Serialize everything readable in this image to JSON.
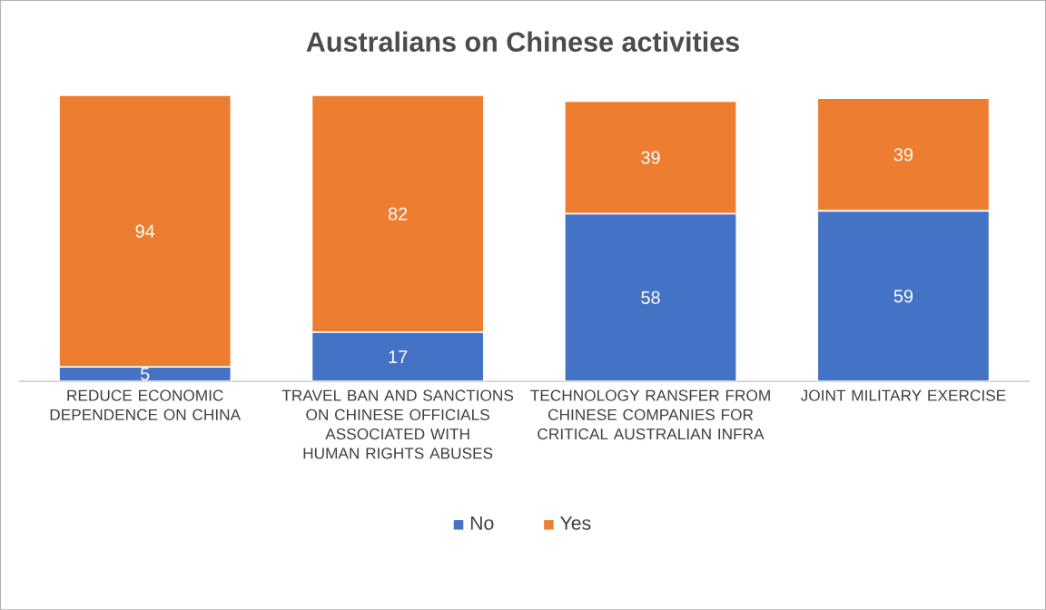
{
  "chart_data": {
    "type": "bar",
    "stacked": true,
    "title": "Australians on Chinese activities",
    "categories": [
      "REDUCE ECONOMIC DEPENDENCE ON CHINA",
      "TRAVEL BAN AND SANCTIONS  ON CHINESE OFFICIALS ASSOCIATED WITH HUMAN RIGHTS ABUSES",
      "TECHNOLOGY RANSFER FROM CHINESE COMPANIES FOR CRITICAL AUSTRALIAN INFRA",
      "JOINT MILITARY EXERCISE"
    ],
    "series": [
      {
        "name": "No",
        "color": "#4472c4",
        "values": [
          5,
          17,
          58,
          59
        ]
      },
      {
        "name": "Yes",
        "color": "#ed7d31",
        "values": [
          94,
          82,
          39,
          39
        ]
      }
    ],
    "data_labels": true,
    "legend": "bottom"
  }
}
